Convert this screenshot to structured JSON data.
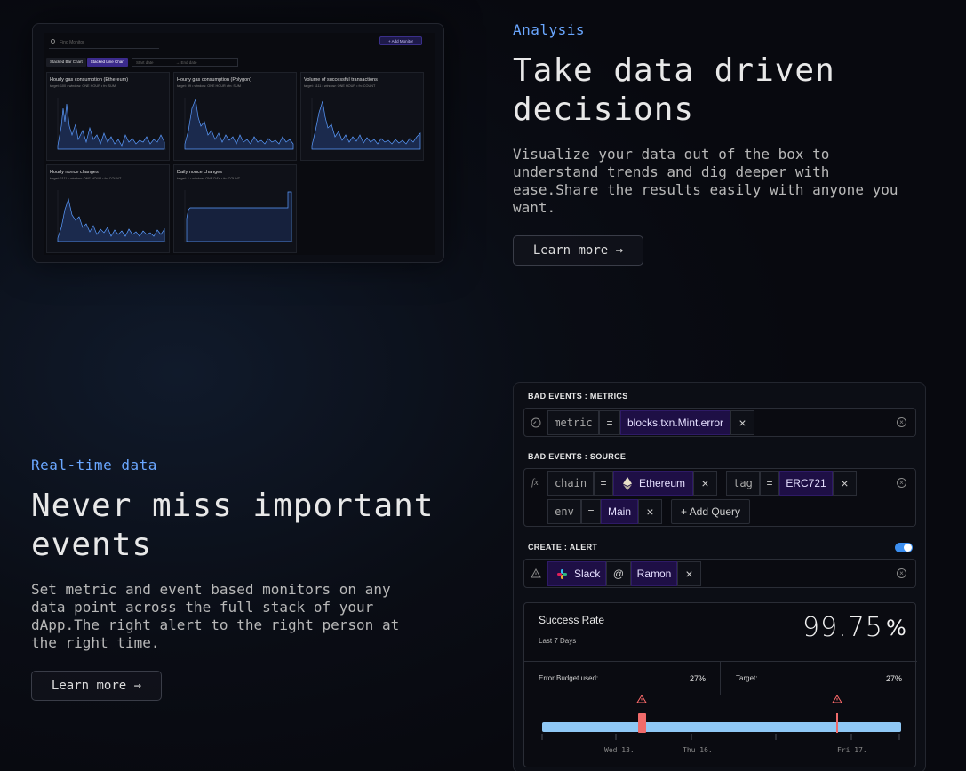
{
  "preview": {
    "search_placeholder": "Find Monitor",
    "add_button": "+ Add Monitor",
    "tabs": [
      "Stacked Bar Chart",
      "Stacked Line Chart"
    ],
    "date_start": "Start date",
    "date_end": "→ End date",
    "cards": [
      {
        "title": "Hourly gas consumption (Ethereum)",
        "sub": "target: 100 • window: ONE HOUR • fn: SUM"
      },
      {
        "title": "Hourly gas consumption (Polygon)",
        "sub": "target: 99 • window: ONE HOUR • fn: SUM"
      },
      {
        "title": "Volume of successful transactions",
        "sub": "target: 1111 • window: ONE HOUR • fn: COUNT"
      },
      {
        "title": "Hourly nonce changes",
        "sub": "target: 1111 • window: ONE HOUR • fn: COUNT"
      },
      {
        "title": "Daily nonce changes",
        "sub": "target: 1 • window: ONE DAY • fn: COUNT"
      }
    ]
  },
  "analysis": {
    "eyebrow": "Analysis",
    "headline_1": "Take data driven",
    "headline_2": "decisions",
    "body_1": "Visualize your data out of the box to",
    "body_2": "understand trends and dig deeper with",
    "body_3": "ease.Share the results easily with anyone you",
    "body_4": "want.",
    "button": "Learn more →"
  },
  "realtime": {
    "eyebrow": "Real-time data",
    "headline_1": "Never miss important",
    "headline_2": "events",
    "body_1": "Set metric and event based monitors on any",
    "body_2": "data point across the full stack of your",
    "body_3": "dApp.The right alert to the right person at",
    "body_4": "the right time.",
    "button": "Learn more →"
  },
  "panel": {
    "metrics_label": "BAD EVENTS : METRICS",
    "metric_key": "metric",
    "metric_op": "=",
    "metric_value": "blocks.txn.Mint.error",
    "source_label": "BAD EVENTS : SOURCE",
    "fx": "fx",
    "chain_key": "chain",
    "chain_op": "=",
    "chain_value": "Ethereum",
    "tag_key": "tag",
    "tag_op": "=",
    "tag_value": "ERC721",
    "env_key": "env",
    "env_op": "=",
    "env_value": "Main",
    "add_query": "+ Add Query",
    "alert_label": "CREATE : ALERT",
    "alert_channel": "Slack",
    "alert_at": "@",
    "alert_person": "Ramon",
    "close": "×",
    "success_title": "Success Rate",
    "success_period": "Last 7 Days",
    "success_value": "99.75",
    "success_unit": "%",
    "budget_label": "Error Budget used:",
    "budget_value": "27%",
    "target_label": "Target:",
    "target_value": "27%",
    "timeline_labels": [
      "Wed 13.",
      "Thu 16.",
      "Fri 17."
    ],
    "toggle_color": "#3b8ef0",
    "accent": "#6aa7ff"
  }
}
